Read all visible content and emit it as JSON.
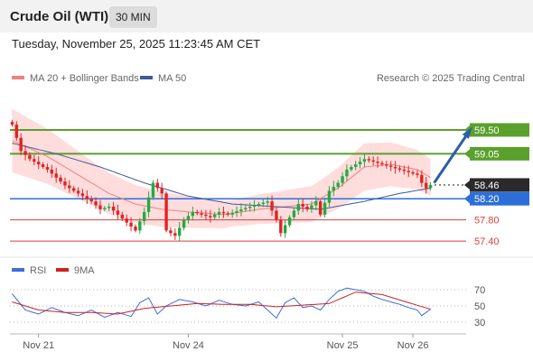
{
  "header": {
    "title": "Crude Oil (WTI)",
    "timeframe": "30 MIN",
    "datetime": "Tuesday, November 25, 2025 11:23:45 AM CET"
  },
  "legend": {
    "ma20": "MA 20 + Bollinger Bands",
    "ma50": "MA 50",
    "research": "Research © 2025 Trading Central",
    "rsi": "RSI",
    "ma9": "9MA"
  },
  "colors": {
    "up": "#27a844",
    "down": "#e02424",
    "bollinger": "#ffb3b3",
    "ma20": "#f08080",
    "ma50": "#3d5a99",
    "resistance": "#5aa02c",
    "pivot": "#2d6fd9",
    "support": "#e03c3c",
    "current": "#2a2a2a",
    "arrow": "#2c5ea8",
    "rsi": "#3a6fd8",
    "rsi_ma": "#cc2222"
  },
  "chart_data": {
    "type": "candlestick",
    "title": "Crude Oil (WTI)",
    "timeframe": "30 MIN",
    "ylim": [
      57.18,
      60.25
    ],
    "x_labels": [
      "Nov 21",
      "Nov 24",
      "Nov 25",
      "Nov 26"
    ],
    "x_label_index": [
      6,
      40,
      75,
      91
    ],
    "n_bars": 96,
    "levels": [
      {
        "label": "59.50",
        "value": 59.5,
        "kind": "resistance"
      },
      {
        "label": "59.05",
        "value": 59.05,
        "kind": "resistance"
      },
      {
        "label": "58.46",
        "value": 58.46,
        "kind": "current"
      },
      {
        "label": "58.20",
        "value": 58.2,
        "kind": "pivot"
      },
      {
        "label": "57.80",
        "value": 57.8,
        "kind": "support"
      },
      {
        "label": "57.40",
        "value": 57.4,
        "kind": "support"
      }
    ],
    "close_anchors": [
      [
        0,
        59.6
      ],
      [
        2,
        59.1
      ],
      [
        4,
        58.95
      ],
      [
        6,
        58.85
      ],
      [
        8,
        58.75
      ],
      [
        10,
        58.6
      ],
      [
        12,
        58.45
      ],
      [
        14,
        58.35
      ],
      [
        16,
        58.25
      ],
      [
        18,
        58.15
      ],
      [
        20,
        58.0
      ],
      [
        22,
        58.05
      ],
      [
        24,
        57.9
      ],
      [
        26,
        57.75
      ],
      [
        28,
        57.6
      ],
      [
        30,
        57.95
      ],
      [
        32,
        58.5
      ],
      [
        34,
        58.3
      ],
      [
        35,
        57.6
      ],
      [
        37,
        57.5
      ],
      [
        39,
        57.8
      ],
      [
        41,
        57.95
      ],
      [
        43,
        57.9
      ],
      [
        45,
        57.85
      ],
      [
        47,
        57.95
      ],
      [
        49,
        57.9
      ],
      [
        52,
        58.0
      ],
      [
        54,
        58.05
      ],
      [
        56,
        58.1
      ],
      [
        58,
        58.15
      ],
      [
        60,
        57.8
      ],
      [
        61,
        57.55
      ],
      [
        63,
        57.85
      ],
      [
        65,
        58.1
      ],
      [
        67,
        58.0
      ],
      [
        69,
        58.15
      ],
      [
        70,
        57.9
      ],
      [
        72,
        58.35
      ],
      [
        74,
        58.5
      ],
      [
        76,
        58.75
      ],
      [
        78,
        58.85
      ],
      [
        80,
        58.95
      ],
      [
        82,
        58.9
      ],
      [
        84,
        58.85
      ],
      [
        86,
        58.8
      ],
      [
        88,
        58.75
      ],
      [
        90,
        58.7
      ],
      [
        92,
        58.65
      ],
      [
        93,
        58.5
      ],
      [
        94,
        58.4
      ],
      [
        95,
        58.46
      ]
    ],
    "ma20_anchors": [
      [
        0,
        59.3
      ],
      [
        8,
        59.0
      ],
      [
        16,
        58.6
      ],
      [
        22,
        58.3
      ],
      [
        28,
        58.1
      ],
      [
        34,
        58.0
      ],
      [
        40,
        57.95
      ],
      [
        48,
        57.9
      ],
      [
        56,
        58.0
      ],
      [
        62,
        58.05
      ],
      [
        68,
        58.1
      ],
      [
        74,
        58.4
      ],
      [
        80,
        58.8
      ],
      [
        86,
        58.85
      ],
      [
        92,
        58.75
      ],
      [
        95,
        58.6
      ]
    ],
    "ma50_anchors": [
      [
        0,
        59.25
      ],
      [
        10,
        59.05
      ],
      [
        20,
        58.8
      ],
      [
        30,
        58.5
      ],
      [
        40,
        58.25
      ],
      [
        50,
        58.1
      ],
      [
        60,
        58.05
      ],
      [
        70,
        58.0
      ],
      [
        80,
        58.15
      ],
      [
        88,
        58.3
      ],
      [
        95,
        58.4
      ]
    ],
    "band_width_anchors": [
      [
        0,
        0.6
      ],
      [
        10,
        0.5
      ],
      [
        20,
        0.4
      ],
      [
        30,
        0.35
      ],
      [
        40,
        0.3
      ],
      [
        50,
        0.25
      ],
      [
        60,
        0.3
      ],
      [
        70,
        0.35
      ],
      [
        80,
        0.45
      ],
      [
        88,
        0.4
      ],
      [
        95,
        0.35
      ]
    ],
    "projection": {
      "from": 58.5,
      "to": 59.5,
      "bars": 9
    },
    "rsi": {
      "levels": [
        70,
        50,
        30
      ],
      "ylim": [
        20,
        80
      ],
      "anchors": [
        [
          0,
          65
        ],
        [
          3,
          45
        ],
        [
          6,
          40
        ],
        [
          9,
          48
        ],
        [
          12,
          42
        ],
        [
          15,
          38
        ],
        [
          18,
          45
        ],
        [
          21,
          36
        ],
        [
          24,
          42
        ],
        [
          27,
          37
        ],
        [
          29,
          54
        ],
        [
          31,
          60
        ],
        [
          33,
          40
        ],
        [
          35,
          50
        ],
        [
          38,
          58
        ],
        [
          41,
          55
        ],
        [
          44,
          50
        ],
        [
          47,
          57
        ],
        [
          50,
          52
        ],
        [
          53,
          50
        ],
        [
          56,
          55
        ],
        [
          58,
          45
        ],
        [
          60,
          35
        ],
        [
          62,
          54
        ],
        [
          64,
          60
        ],
        [
          66,
          48
        ],
        [
          68,
          50
        ],
        [
          70,
          45
        ],
        [
          72,
          58
        ],
        [
          74,
          68
        ],
        [
          76,
          72
        ],
        [
          78,
          70
        ],
        [
          80,
          68
        ],
        [
          82,
          62
        ],
        [
          84,
          58
        ],
        [
          86,
          55
        ],
        [
          88,
          52
        ],
        [
          90,
          48
        ],
        [
          92,
          45
        ],
        [
          93,
          38
        ],
        [
          95,
          46
        ]
      ],
      "ma9_anchors": [
        [
          0,
          55
        ],
        [
          6,
          45
        ],
        [
          12,
          42
        ],
        [
          18,
          42
        ],
        [
          24,
          40
        ],
        [
          30,
          47
        ],
        [
          36,
          50
        ],
        [
          42,
          53
        ],
        [
          48,
          52
        ],
        [
          54,
          52
        ],
        [
          60,
          49
        ],
        [
          66,
          51
        ],
        [
          72,
          53
        ],
        [
          78,
          67
        ],
        [
          84,
          64
        ],
        [
          90,
          54
        ],
        [
          95,
          46
        ]
      ]
    }
  }
}
